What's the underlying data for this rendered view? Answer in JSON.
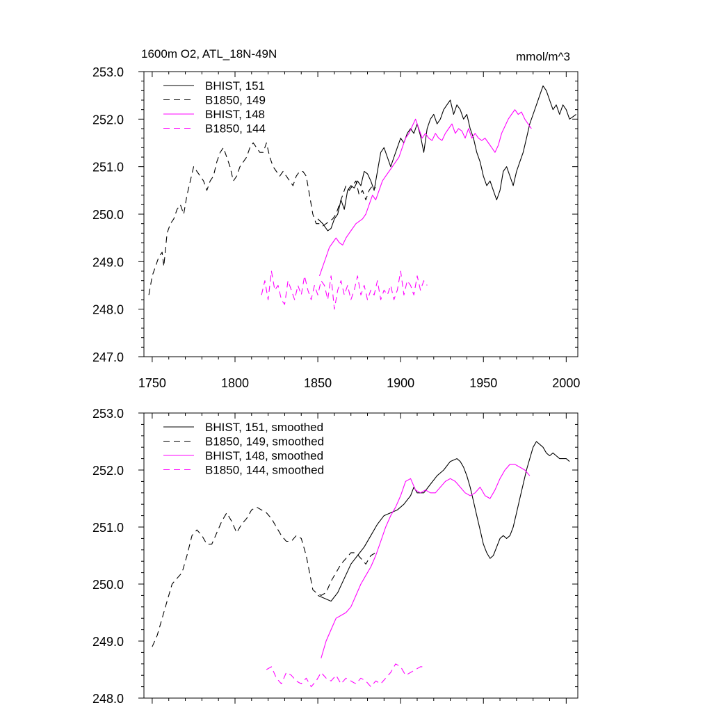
{
  "header": {
    "title": "1600m O2, ATL_18N-49N",
    "units": "mmol/m^3"
  },
  "colors": {
    "black": "#000000",
    "magenta": "#ff00ff"
  },
  "chart_data": [
    {
      "type": "line",
      "xlim": [
        1745,
        2007
      ],
      "ylim": [
        247.0,
        253.0
      ],
      "xticks": [
        "1750",
        "1800",
        "1850",
        "1900",
        "1950",
        "2000"
      ],
      "yticks": [
        "247.0",
        "248.0",
        "249.0",
        "250.0",
        "251.0",
        "252.0",
        "253.0"
      ],
      "legend_position": "top-left",
      "series": [
        {
          "name": "BHIST, 151",
          "color": "#000000",
          "dash": "solid",
          "x": [
            1850,
            1853,
            1856,
            1858,
            1860,
            1862,
            1864,
            1866,
            1868,
            1870,
            1872,
            1874,
            1876,
            1878,
            1880,
            1882,
            1884,
            1886,
            1888,
            1890,
            1892,
            1894,
            1896,
            1898,
            1900,
            1902,
            1904,
            1906,
            1908,
            1910,
            1912,
            1914,
            1916,
            1918,
            1920,
            1922,
            1924,
            1926,
            1928,
            1930,
            1932,
            1934,
            1936,
            1938,
            1940,
            1942,
            1944,
            1946,
            1948,
            1950,
            1952,
            1954,
            1956,
            1958,
            1960,
            1962,
            1964,
            1966,
            1968,
            1970,
            1972,
            1974,
            1976,
            1978,
            1980,
            1982,
            1984,
            1986,
            1988,
            1990,
            1992,
            1994,
            1996,
            1998,
            2000,
            2002,
            2004,
            2006
          ],
          "y": [
            249.9,
            249.8,
            249.65,
            249.7,
            249.9,
            250.0,
            250.3,
            250.1,
            250.5,
            250.6,
            250.55,
            250.7,
            250.6,
            250.9,
            250.85,
            250.7,
            250.5,
            250.9,
            251.3,
            251.4,
            251.2,
            251.0,
            251.2,
            251.4,
            251.6,
            251.5,
            251.7,
            251.8,
            251.7,
            251.9,
            251.65,
            251.3,
            251.8,
            252.0,
            252.1,
            251.9,
            252.0,
            252.2,
            252.3,
            252.4,
            252.1,
            252.3,
            252.2,
            252.0,
            252.1,
            251.8,
            251.6,
            251.3,
            251.1,
            250.8,
            250.6,
            250.7,
            250.5,
            250.3,
            250.5,
            250.9,
            251.0,
            250.8,
            250.6,
            250.9,
            251.1,
            251.3,
            251.6,
            251.9,
            252.1,
            252.3,
            252.5,
            252.7,
            252.6,
            252.4,
            252.2,
            252.3,
            252.1,
            252.3,
            252.2,
            252.0,
            252.05,
            252.1
          ]
        },
        {
          "name": "B1850, 149",
          "color": "#000000",
          "dash": "dashed",
          "x": [
            1748,
            1750,
            1752,
            1754,
            1756,
            1757,
            1759,
            1761,
            1763,
            1765,
            1767,
            1769,
            1771,
            1773,
            1775,
            1777,
            1779,
            1781,
            1783,
            1785,
            1787,
            1789,
            1791,
            1793,
            1795,
            1797,
            1799,
            1801,
            1803,
            1805,
            1807,
            1809,
            1811,
            1813,
            1815,
            1817,
            1819,
            1821,
            1823,
            1825,
            1827,
            1829,
            1831,
            1833,
            1835,
            1837,
            1839,
            1841,
            1843,
            1845,
            1847,
            1849,
            1851,
            1853,
            1855,
            1857,
            1859,
            1861,
            1863,
            1865,
            1867,
            1869,
            1871,
            1873,
            1875,
            1877,
            1879,
            1881,
            1883,
            1885
          ],
          "y": [
            248.3,
            248.7,
            248.9,
            249.1,
            249.2,
            248.9,
            249.6,
            249.8,
            249.9,
            250.1,
            250.2,
            250.0,
            250.4,
            250.7,
            251.0,
            250.9,
            250.8,
            250.7,
            250.5,
            250.7,
            250.8,
            251.1,
            251.3,
            251.4,
            251.2,
            251.0,
            250.7,
            250.8,
            251.0,
            251.1,
            251.2,
            251.4,
            251.5,
            251.4,
            251.3,
            251.3,
            251.5,
            251.2,
            251.0,
            250.9,
            250.8,
            250.9,
            250.8,
            250.7,
            250.6,
            250.8,
            250.9,
            250.9,
            250.8,
            250.4,
            250.0,
            249.8,
            249.8,
            249.75,
            249.8,
            249.85,
            249.9,
            250.0,
            250.2,
            250.4,
            250.6,
            250.5,
            250.6,
            250.7,
            250.4,
            250.5,
            250.3,
            250.5,
            250.6,
            250.55
          ]
        },
        {
          "name": "BHIST, 148",
          "color": "#ff00ff",
          "dash": "solid",
          "x": [
            1851,
            1853,
            1855,
            1857,
            1859,
            1861,
            1863,
            1865,
            1867,
            1869,
            1871,
            1873,
            1875,
            1877,
            1879,
            1881,
            1883,
            1885,
            1887,
            1889,
            1891,
            1893,
            1895,
            1897,
            1899,
            1901,
            1903,
            1905,
            1907,
            1909,
            1911,
            1913,
            1915,
            1917,
            1919,
            1921,
            1923,
            1925,
            1927,
            1929,
            1931,
            1933,
            1935,
            1937,
            1939,
            1941,
            1943,
            1945,
            1947,
            1949,
            1951,
            1953,
            1955,
            1957,
            1959,
            1961,
            1963,
            1965,
            1967,
            1969,
            1971,
            1973,
            1975,
            1977,
            1979
          ],
          "y": [
            248.7,
            248.9,
            249.1,
            249.3,
            249.4,
            249.5,
            249.4,
            249.35,
            249.5,
            249.6,
            249.7,
            249.8,
            249.85,
            249.9,
            250.0,
            250.2,
            250.4,
            250.3,
            250.5,
            250.7,
            250.8,
            250.9,
            251.0,
            251.1,
            251.2,
            251.4,
            251.6,
            251.7,
            251.85,
            252.0,
            251.8,
            251.6,
            251.7,
            251.6,
            251.55,
            251.7,
            251.6,
            251.55,
            251.7,
            251.8,
            251.9,
            251.7,
            251.8,
            251.75,
            251.6,
            251.8,
            251.6,
            251.7,
            251.6,
            251.55,
            251.6,
            251.5,
            251.4,
            251.3,
            251.45,
            251.7,
            251.85,
            252.0,
            252.1,
            252.2,
            252.1,
            252.15,
            252.0,
            251.9,
            251.8
          ]
        },
        {
          "name": "B1850, 144",
          "color": "#ff00ff",
          "dash": "dashed",
          "x": [
            1816,
            1818,
            1820,
            1822,
            1824,
            1826,
            1828,
            1830,
            1832,
            1834,
            1836,
            1838,
            1840,
            1842,
            1844,
            1846,
            1848,
            1850,
            1852,
            1854,
            1856,
            1858,
            1860,
            1862,
            1864,
            1866,
            1868,
            1870,
            1872,
            1874,
            1876,
            1878,
            1880,
            1882,
            1884,
            1886,
            1888,
            1890,
            1892,
            1894,
            1896,
            1898,
            1900,
            1902,
            1904,
            1906,
            1908,
            1910,
            1912,
            1914,
            1916
          ],
          "y": [
            248.3,
            248.6,
            248.2,
            248.8,
            248.4,
            248.5,
            248.2,
            248.1,
            248.6,
            248.4,
            248.2,
            248.5,
            248.3,
            248.7,
            248.4,
            248.2,
            248.5,
            248.3,
            248.6,
            248.5,
            248.2,
            248.7,
            248.0,
            248.4,
            248.6,
            248.3,
            248.5,
            248.2,
            248.4,
            248.7,
            248.3,
            248.5,
            248.2,
            248.4,
            248.3,
            248.6,
            248.2,
            248.4,
            248.3,
            248.5,
            248.2,
            248.4,
            248.8,
            248.3,
            248.6,
            248.5,
            248.3,
            248.7,
            248.4,
            248.6,
            248.5
          ]
        }
      ]
    },
    {
      "type": "line",
      "xlim": [
        1745,
        2007
      ],
      "ylim": [
        248.0,
        253.0
      ],
      "xticks": [],
      "yticks": [
        "248.0",
        "249.0",
        "250.0",
        "251.0",
        "252.0",
        "253.0"
      ],
      "legend_position": "top-left",
      "series": [
        {
          "name": "BHIST, 151, smoothed",
          "color": "#000000",
          "dash": "solid",
          "x": [
            1850,
            1854,
            1858,
            1862,
            1866,
            1870,
            1874,
            1878,
            1882,
            1886,
            1890,
            1894,
            1898,
            1902,
            1906,
            1908,
            1910,
            1914,
            1918,
            1922,
            1926,
            1930,
            1934,
            1936,
            1938,
            1940,
            1942,
            1944,
            1946,
            1948,
            1950,
            1952,
            1954,
            1956,
            1958,
            1960,
            1962,
            1964,
            1966,
            1968,
            1970,
            1972,
            1974,
            1976,
            1978,
            1980,
            1982,
            1984,
            1986,
            1988,
            1990,
            1992,
            1994,
            1996,
            1998,
            2000,
            2002
          ],
          "y": [
            249.8,
            249.75,
            249.7,
            249.85,
            250.1,
            250.35,
            250.5,
            250.65,
            250.85,
            251.05,
            251.2,
            251.25,
            251.3,
            251.4,
            251.55,
            251.7,
            251.6,
            251.6,
            251.75,
            251.9,
            252.0,
            252.15,
            252.2,
            252.15,
            252.05,
            251.9,
            251.7,
            251.45,
            251.2,
            250.95,
            250.7,
            250.55,
            250.45,
            250.5,
            250.65,
            250.8,
            250.85,
            250.8,
            250.85,
            251.0,
            251.25,
            251.5,
            251.75,
            252.0,
            252.2,
            252.4,
            252.5,
            252.45,
            252.4,
            252.3,
            252.25,
            252.3,
            252.25,
            252.2,
            252.2,
            252.2,
            252.15
          ]
        },
        {
          "name": "B1850, 149, smoothed",
          "color": "#000000",
          "dash": "dashed",
          "x": [
            1750,
            1753,
            1756,
            1759,
            1762,
            1765,
            1768,
            1771,
            1774,
            1777,
            1780,
            1783,
            1786,
            1789,
            1792,
            1795,
            1798,
            1801,
            1804,
            1807,
            1810,
            1813,
            1816,
            1819,
            1822,
            1825,
            1828,
            1831,
            1834,
            1837,
            1840,
            1843,
            1845,
            1847,
            1849,
            1852,
            1855,
            1858,
            1861,
            1864,
            1867,
            1870,
            1873,
            1876,
            1879,
            1882,
            1885
          ],
          "y": [
            248.9,
            249.1,
            249.4,
            249.7,
            250.0,
            250.1,
            250.2,
            250.5,
            250.85,
            250.95,
            250.85,
            250.7,
            250.7,
            250.9,
            251.1,
            251.25,
            251.1,
            250.9,
            251.05,
            251.15,
            251.3,
            251.35,
            251.3,
            251.25,
            251.15,
            251.0,
            250.85,
            250.75,
            250.75,
            250.85,
            250.8,
            250.5,
            250.2,
            249.9,
            249.85,
            249.8,
            249.85,
            250.05,
            250.2,
            250.35,
            250.45,
            250.55,
            250.55,
            250.45,
            250.35,
            250.5,
            250.55
          ]
        },
        {
          "name": "BHIST, 148, smoothed",
          "color": "#ff00ff",
          "dash": "solid",
          "x": [
            1852,
            1855,
            1858,
            1861,
            1864,
            1867,
            1870,
            1873,
            1876,
            1879,
            1882,
            1885,
            1888,
            1891,
            1894,
            1897,
            1900,
            1903,
            1906,
            1909,
            1912,
            1915,
            1918,
            1921,
            1924,
            1927,
            1930,
            1933,
            1936,
            1939,
            1942,
            1945,
            1948,
            1951,
            1954,
            1957,
            1960,
            1963,
            1966,
            1969,
            1972,
            1975,
            1978
          ],
          "y": [
            248.7,
            249.0,
            249.2,
            249.4,
            249.45,
            249.5,
            249.6,
            249.8,
            250.0,
            250.15,
            250.3,
            250.5,
            250.75,
            251.0,
            251.2,
            251.35,
            251.55,
            251.8,
            251.85,
            251.65,
            251.6,
            251.65,
            251.6,
            251.6,
            251.7,
            251.8,
            251.85,
            251.8,
            251.7,
            251.6,
            251.55,
            251.6,
            251.7,
            251.55,
            251.5,
            251.65,
            251.85,
            252.0,
            252.1,
            252.1,
            252.05,
            252.0,
            251.9
          ]
        },
        {
          "name": "B1850, 144, smoothed",
          "color": "#ff00ff",
          "dash": "dashed",
          "x": [
            1819,
            1822,
            1825,
            1828,
            1831,
            1834,
            1837,
            1840,
            1843,
            1846,
            1849,
            1852,
            1855,
            1858,
            1861,
            1864,
            1867,
            1870,
            1873,
            1876,
            1879,
            1882,
            1885,
            1888,
            1891,
            1894,
            1897,
            1900,
            1903,
            1906,
            1909,
            1912,
            1915
          ],
          "y": [
            248.5,
            248.55,
            248.35,
            248.25,
            248.45,
            248.4,
            248.3,
            248.25,
            248.35,
            248.2,
            248.3,
            248.45,
            248.35,
            248.3,
            248.4,
            248.25,
            248.35,
            248.3,
            248.25,
            248.35,
            248.3,
            248.2,
            248.3,
            248.25,
            248.35,
            248.45,
            248.6,
            248.55,
            248.4,
            248.45,
            248.5,
            248.55,
            248.55
          ]
        }
      ]
    }
  ]
}
